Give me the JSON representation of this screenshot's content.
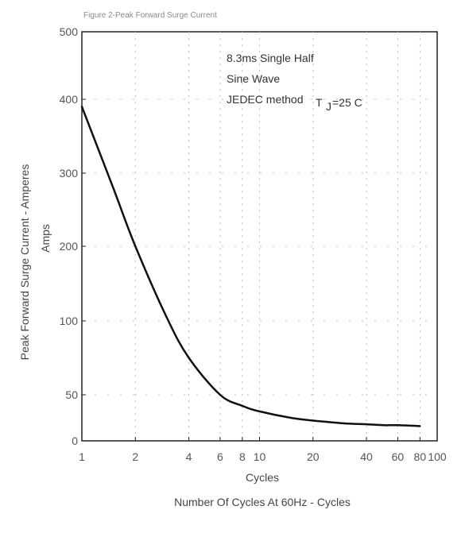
{
  "chart_data": {
    "type": "line",
    "title": "Figure 2-Peak Forward Surge Current",
    "xlabel": "Number Of Cycles At 60Hz - Cycles",
    "xunit": "Cycles",
    "ylabel": "Peak Forward Surge Current - Amperes",
    "yunit": "Amps",
    "x_scale": "log",
    "xlim": [
      1,
      100
    ],
    "ylim": [
      0,
      500
    ],
    "x_ticks": [
      1,
      2,
      4,
      6,
      8,
      10,
      20,
      40,
      60,
      80,
      100
    ],
    "x_tick_labels": [
      "1",
      "2",
      "4",
      "6",
      "8",
      "10",
      "20",
      "40",
      "60",
      "80",
      "100"
    ],
    "y_ticks": [
      0,
      50,
      100,
      200,
      300,
      400,
      500
    ],
    "y_tick_labels": [
      "0",
      "50",
      "100",
      "200",
      "300",
      "400",
      "500"
    ],
    "grid": true,
    "annotations": [
      "8.3ms Single Half",
      "Sine Wave",
      "JEDEC method",
      "T",
      "J",
      "=25 C"
    ],
    "series": [
      {
        "color": "#111111",
        "x": [
          1,
          1.5,
          2,
          3,
          4,
          6,
          8,
          10,
          15,
          20,
          30,
          40,
          50,
          60,
          80
        ],
        "y": [
          390,
          280,
          200,
          105,
          75,
          50,
          38,
          32,
          25,
          22,
          19,
          18,
          17,
          17,
          16
        ]
      }
    ]
  }
}
